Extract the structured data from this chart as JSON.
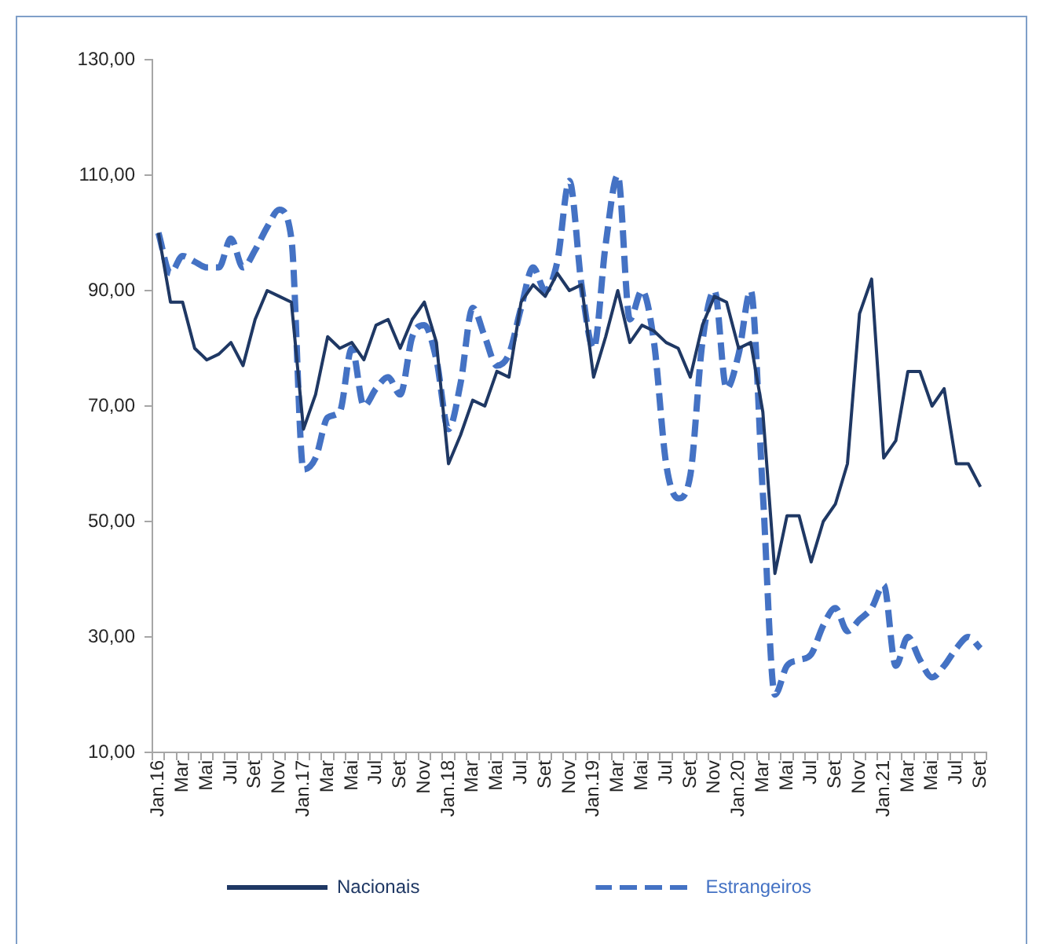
{
  "chart_data": {
    "type": "line",
    "categories": [
      "Jan.16",
      null,
      "Mar",
      null,
      "Mai",
      null,
      "Jul",
      null,
      "Set",
      null,
      "Nov",
      null,
      "Jan.17",
      null,
      "Mar",
      null,
      "Mai",
      null,
      "Jul",
      null,
      "Set",
      null,
      "Nov",
      null,
      "Jan.18",
      null,
      "Mar",
      null,
      "Mai",
      null,
      "Jul",
      null,
      "Set",
      null,
      "Nov",
      null,
      "Jan.19",
      null,
      "Mar",
      null,
      "Mai",
      null,
      "Jul",
      null,
      "Set",
      null,
      "Nov",
      null,
      "Jan.20",
      null,
      "Mar",
      null,
      "Mai",
      null,
      "Jul",
      null,
      "Set",
      null,
      "Nov",
      null,
      "Jan.21",
      null,
      "Mar",
      null,
      "Mai",
      null,
      "Jul",
      null,
      "Set"
    ],
    "series": [
      {
        "name": "Nacionais",
        "color": "#1f3864",
        "line_style": "solid",
        "values": [
          100,
          88,
          88,
          80,
          78,
          79,
          81,
          77,
          85,
          90,
          89,
          88,
          66,
          72,
          82,
          80,
          81,
          78,
          84,
          85,
          80,
          85,
          88,
          81,
          60,
          65,
          71,
          70,
          76,
          75,
          88,
          91,
          89,
          93,
          90,
          91,
          75,
          82,
          90,
          81,
          84,
          83,
          81,
          80,
          75,
          84,
          89,
          88,
          80,
          81,
          69,
          41,
          51,
          51,
          43,
          50,
          53,
          60,
          86,
          92,
          61,
          64,
          76,
          76,
          70,
          73,
          60,
          60,
          56
        ]
      },
      {
        "name": "Estrangeiros",
        "color": "#4472c4",
        "line_style": "dashed",
        "values": [
          100,
          93,
          96,
          95,
          94,
          94,
          99,
          94,
          97,
          101,
          104,
          99,
          59,
          61,
          68,
          69,
          80,
          70,
          73,
          75,
          72,
          82,
          84,
          78,
          66,
          74,
          87,
          82,
          77,
          79,
          87,
          94,
          90,
          95,
          109,
          91,
          80,
          98,
          110,
          85,
          90,
          81,
          60,
          54,
          58,
          81,
          90,
          73,
          79,
          90,
          55,
          20,
          25,
          26,
          27,
          32,
          35,
          31,
          33,
          35,
          39,
          25,
          30,
          26,
          23,
          25,
          28,
          30,
          28
        ]
      }
    ],
    "ylim": [
      10,
      130
    ],
    "yticks": [
      {
        "value": 10,
        "label": "10,00"
      },
      {
        "value": 30,
        "label": "30,00"
      },
      {
        "value": 50,
        "label": "50,00"
      },
      {
        "value": 70,
        "label": "70,00"
      },
      {
        "value": 90,
        "label": "90,00"
      },
      {
        "value": 110,
        "label": "110,00"
      },
      {
        "value": 130,
        "label": "130,00"
      }
    ],
    "grid": false,
    "legend": "bottom",
    "marker": "none"
  }
}
